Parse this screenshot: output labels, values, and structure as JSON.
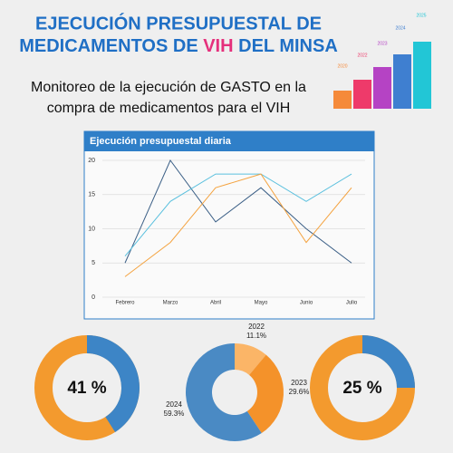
{
  "header": {
    "title_line1": "EJECUCIÓN PRESUPUESTAL DE",
    "title_line2_a": "MEDICAMENTOS DE ",
    "title_highlight": "VIH",
    "title_line2_b": " DEL MINSA",
    "subtitle_line1": "Monitoreo de la ejecución de GASTO en la",
    "subtitle_line2": "compra de medicamentos para el VIH"
  },
  "decoration": {
    "years": [
      "2020",
      "2022",
      "2023",
      "2024",
      "2025"
    ]
  },
  "chart_data": [
    {
      "type": "line",
      "title": "Ejecución presupuestal diaria",
      "categories": [
        "Febrero",
        "Marzo",
        "Abril",
        "Mayo",
        "Junio",
        "Julio"
      ],
      "series": [
        {
          "color": "#3b5f86",
          "values": [
            5,
            20,
            11,
            16,
            10,
            5
          ]
        },
        {
          "color": "#5bc0de",
          "values": [
            6,
            14,
            18,
            18,
            14,
            18
          ]
        },
        {
          "color": "#f4a340",
          "values": [
            3,
            8,
            16,
            18,
            8,
            16
          ]
        }
      ],
      "ylim": [
        0,
        20
      ],
      "yticks": [
        0,
        5,
        10,
        15,
        20
      ],
      "grid": true
    },
    {
      "type": "donut",
      "values": [
        41
      ],
      "value_labels": [
        "41 %"
      ],
      "colors": [
        "#3d85c6"
      ],
      "base_color": "#f39a2e"
    },
    {
      "type": "pie",
      "categories": [
        "2022",
        "2023",
        "2024"
      ],
      "values": [
        11.1,
        29.6,
        59.3
      ],
      "value_labels": [
        "11.1%",
        "29.6%",
        "59.3%"
      ],
      "colors": [
        "#fbb567",
        "#f4922a",
        "#4a8ac4"
      ],
      "hole": true
    },
    {
      "type": "donut",
      "values": [
        25
      ],
      "value_labels": [
        "25 %"
      ],
      "colors": [
        "#3d85c6"
      ],
      "base_color": "#f39a2e"
    }
  ]
}
